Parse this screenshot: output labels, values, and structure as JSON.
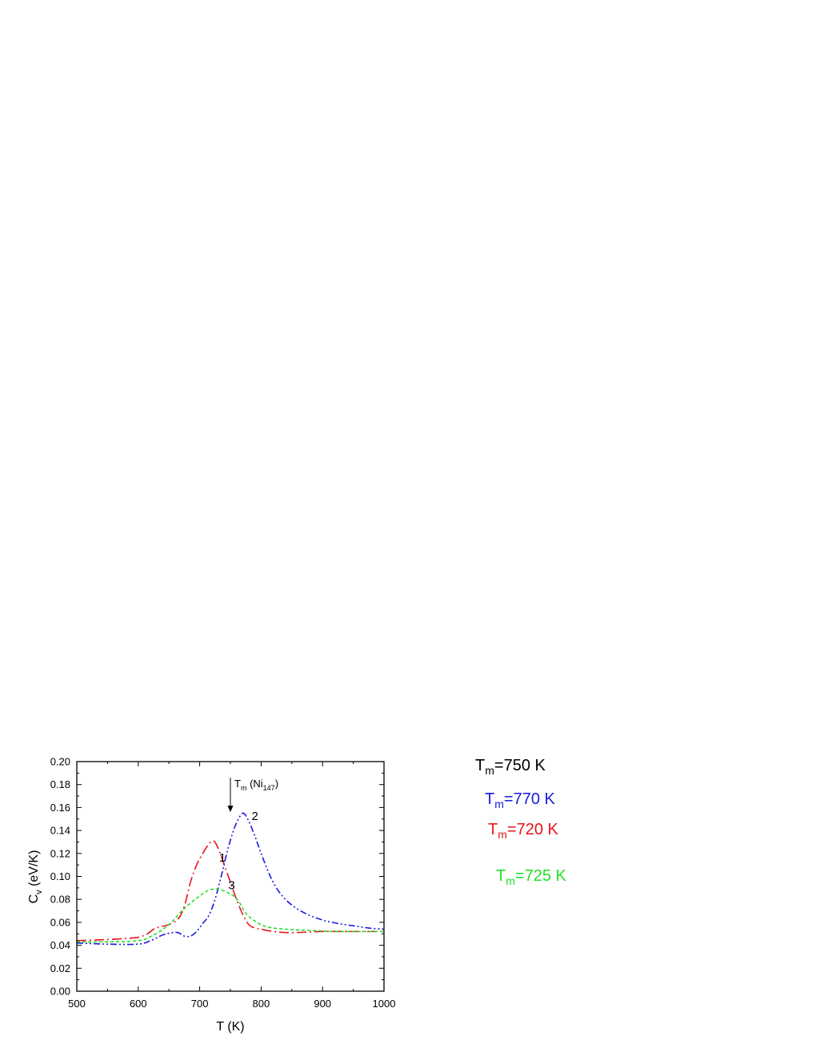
{
  "chart_data": {
    "type": "line",
    "xlabel": "T (K)",
    "ylabel_main": "C",
    "ylabel_sub": "v",
    "ylabel_rest": " (eV/K)",
    "xlim": [
      500,
      1000
    ],
    "ylim": [
      0.0,
      0.2
    ],
    "xticks": [
      "500",
      "600",
      "700",
      "800",
      "900",
      "1000"
    ],
    "yticks": [
      "0.00",
      "0.02",
      "0.04",
      "0.06",
      "0.08",
      "0.10",
      "0.12",
      "0.14",
      "0.16",
      "0.18",
      "0.20"
    ],
    "grid": false,
    "annotation": {
      "main": "T",
      "sub": "m",
      "mid": " (Ni",
      "sub2": "147",
      "end": ")",
      "x": 750,
      "y_top": 0.186,
      "y_bottom": 0.156
    },
    "series": [
      {
        "label": "1",
        "label_pos": [
          737,
          0.113
        ],
        "color": "#e8141c",
        "dash": "12,4,2,4",
        "x": [
          500,
          550,
          580,
          600,
          615,
          625,
          635,
          650,
          665,
          675,
          685,
          695,
          705,
          712,
          718,
          722,
          726,
          732,
          740,
          750,
          760,
          770,
          780,
          790,
          800,
          820,
          850,
          900,
          950,
          1000
        ],
        "y": [
          0.044,
          0.045,
          0.046,
          0.047,
          0.05,
          0.054,
          0.056,
          0.058,
          0.063,
          0.074,
          0.095,
          0.11,
          0.12,
          0.126,
          0.13,
          0.131,
          0.129,
          0.122,
          0.11,
          0.095,
          0.08,
          0.067,
          0.058,
          0.055,
          0.054,
          0.052,
          0.051,
          0.052,
          0.052,
          0.052
        ]
      },
      {
        "label": "2",
        "label_pos": [
          790,
          0.149
        ],
        "color": "#1a1ae0",
        "dash": "8,3,2,3,2,3",
        "x": [
          500,
          550,
          600,
          620,
          640,
          655,
          665,
          675,
          685,
          695,
          705,
          715,
          725,
          735,
          745,
          755,
          763,
          770,
          775,
          780,
          790,
          800,
          815,
          830,
          850,
          875,
          900,
          925,
          950,
          975,
          1000
        ],
        "y": [
          0.042,
          0.041,
          0.041,
          0.044,
          0.049,
          0.051,
          0.051,
          0.048,
          0.048,
          0.052,
          0.059,
          0.066,
          0.08,
          0.1,
          0.122,
          0.14,
          0.15,
          0.155,
          0.153,
          0.148,
          0.135,
          0.12,
          0.1,
          0.086,
          0.075,
          0.067,
          0.062,
          0.059,
          0.057,
          0.055,
          0.054
        ]
      },
      {
        "label": "3",
        "label_pos": [
          752,
          0.089
        ],
        "color": "#22e022",
        "dash": "4,3",
        "x": [
          500,
          550,
          600,
          625,
          650,
          675,
          700,
          715,
          730,
          745,
          755,
          765,
          775,
          790,
          810,
          840,
          880,
          920,
          960,
          1000
        ],
        "y": [
          0.043,
          0.043,
          0.044,
          0.049,
          0.058,
          0.072,
          0.083,
          0.088,
          0.089,
          0.086,
          0.083,
          0.077,
          0.068,
          0.061,
          0.056,
          0.054,
          0.053,
          0.052,
          0.052,
          0.052
        ]
      }
    ]
  },
  "tm_labels": {
    "black": {
      "main": "T",
      "sub": "m",
      "rest": "=750 K",
      "color": "#000000"
    },
    "blue": {
      "main": "T",
      "sub": "m",
      "rest": "=770 K",
      "color": "#1a1ae0"
    },
    "red": {
      "main": "T",
      "sub": "m",
      "rest": "=720 K",
      "color": "#e8141c"
    },
    "green": {
      "main": "T",
      "sub": "m",
      "rest": "=725 K",
      "color": "#22e022"
    }
  }
}
